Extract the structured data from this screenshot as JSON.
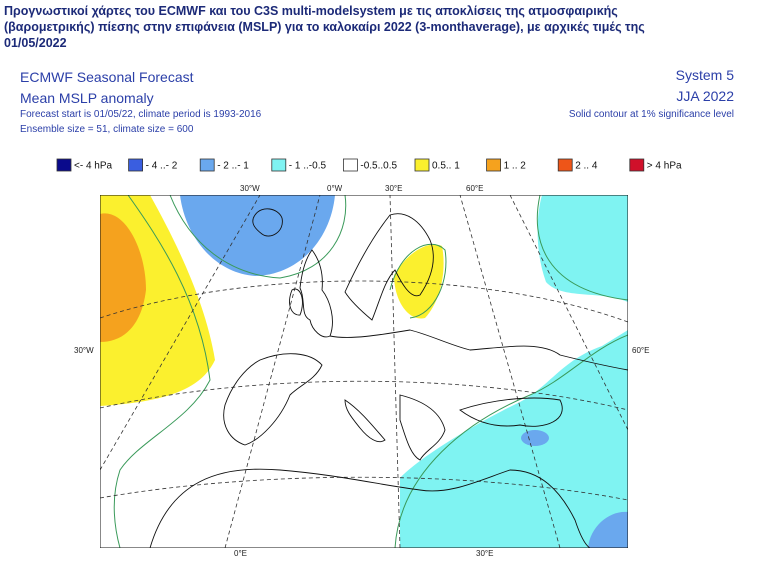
{
  "caption": {
    "lines": [
      "Προγνωστικοί χάρτες του ECMWF και του C3S multi-modelsystem με τις αποκλίσεις της ατμοσφαιρικής",
      "(βαρομετρικής) πίεσης στην επιφάνεια (MSLP) για το καλοκαίρι 2022 (3-monthaverage), με αρχικές τιμές της",
      "01/05/2022"
    ]
  },
  "header": {
    "left": [
      "ECMWF Seasonal Forecast",
      "Mean MSLP anomaly",
      "Forecast start is 01/05/22, climate period is 1993-2016",
      "Ensemble size = 51, climate size = 600"
    ],
    "right": [
      "System 5",
      "JJA 2022",
      "Solid contour at 1% significance level"
    ]
  },
  "legend": [
    {
      "label": "<- 4 hPa",
      "color": "#0a0a8c"
    },
    {
      "label": "- 4 ..- 2",
      "color": "#3a5ee0"
    },
    {
      "label": "- 2 ..- 1",
      "color": "#6aa8ee"
    },
    {
      "label": "- 1 ..-0.5",
      "color": "#7ff3f2"
    },
    {
      "label": "-0.5..0.5",
      "color": "#ffffff"
    },
    {
      "label": "0.5.. 1",
      "color": "#fbf02e"
    },
    {
      "label": "1 .. 2",
      "color": "#f5a21e"
    },
    {
      "label": "2 .. 4",
      "color": "#ee5518"
    },
    {
      "label": "> 4 hPa",
      "color": "#d0102a"
    }
  ],
  "graticule": {
    "top": [
      "30°W",
      "0°W",
      "30°E",
      "60°E"
    ],
    "left": "30°W",
    "right": "60°E",
    "bottom": [
      "0°E",
      "30°E"
    ]
  }
}
